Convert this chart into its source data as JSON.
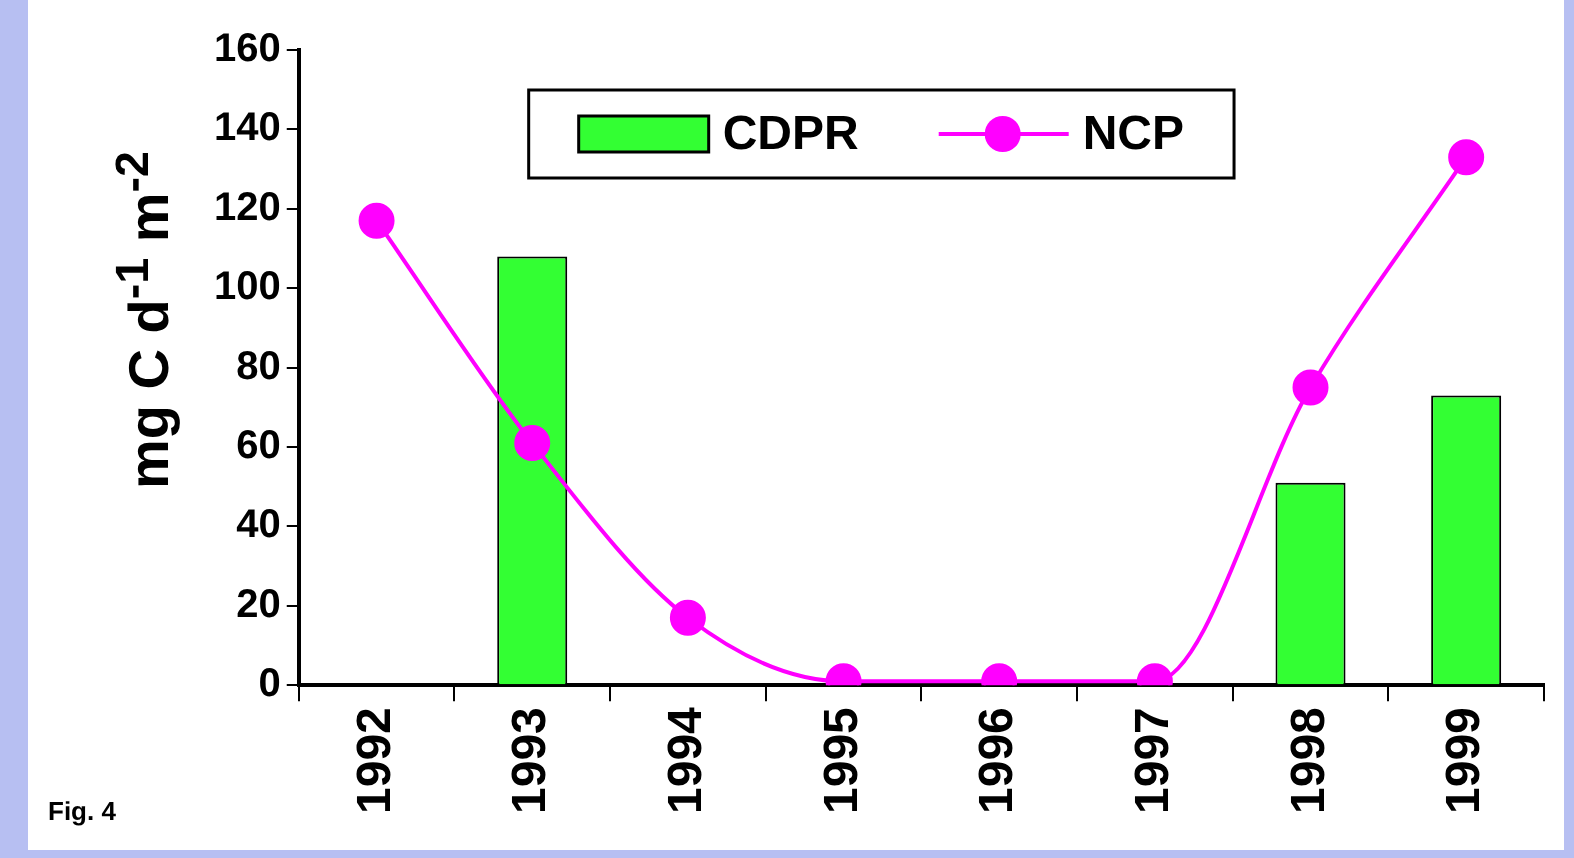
{
  "chart_data": {
    "type": "bar",
    "ylabel": "mg C d$^{-1}$ m$^{-2}$",
    "categories": [
      "1992",
      "1993",
      "1994",
      "1995",
      "1996",
      "1997",
      "1998",
      "1999"
    ],
    "series": [
      {
        "name": "CDPR",
        "color": "#33ff33",
        "values": [
          null,
          108,
          null,
          null,
          null,
          null,
          51,
          73
        ]
      },
      {
        "name": "NCP",
        "type": "line",
        "color": "#ff00ff",
        "marker": "circle",
        "values": [
          117,
          61,
          17,
          1,
          1,
          1,
          75,
          133
        ]
      }
    ],
    "ylim": [
      0,
      160
    ],
    "yticks": [
      0,
      20,
      40,
      60,
      80,
      100,
      120,
      140,
      160
    ],
    "grid": false,
    "legend": "top",
    "annotations": [
      "Fig. 4"
    ]
  }
}
